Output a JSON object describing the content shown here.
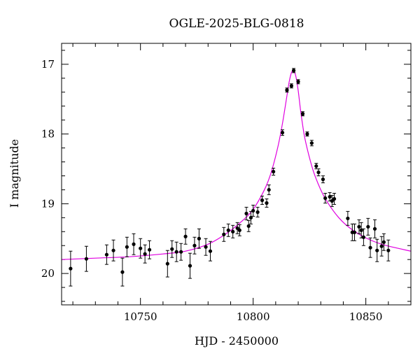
{
  "chart_data": {
    "type": "scatter",
    "title": "OGLE-2025-BLG-0818",
    "xlabel": "HJD - 2450000",
    "ylabel": "I magnitude",
    "xlim": [
      10715,
      10870
    ],
    "ylim": [
      20.45,
      16.7
    ],
    "y_inverted": true,
    "grid": false,
    "x_ticks": [
      10750,
      10800,
      10850
    ],
    "y_ticks": [
      17,
      18,
      19,
      20
    ],
    "colors": {
      "points": "#000000",
      "model": "#e000e0"
    },
    "model": {
      "name": "",
      "x": [
        10715,
        10730,
        10745,
        10760,
        10770,
        10780,
        10788,
        10795,
        10800,
        10805,
        10808,
        10811,
        10813,
        10815,
        10816,
        10817,
        10818,
        10819,
        10820,
        10821,
        10822,
        10823,
        10825,
        10827,
        10830,
        10833,
        10838,
        10843,
        10850,
        10858,
        10870
      ],
      "y": [
        19.8,
        19.78,
        19.76,
        19.72,
        19.68,
        19.58,
        19.43,
        19.25,
        19.08,
        18.8,
        18.55,
        18.18,
        17.85,
        17.45,
        17.25,
        17.12,
        17.09,
        17.18,
        17.38,
        17.65,
        17.88,
        18.07,
        18.34,
        18.56,
        18.8,
        18.98,
        19.2,
        19.35,
        19.49,
        19.59,
        19.68
      ]
    },
    "series": [
      {
        "name": "",
        "x": [
          10719,
          10726,
          10735,
          10738,
          10742,
          10744,
          10747,
          10750,
          10752,
          10754,
          10762,
          10764,
          10766,
          10768,
          10770,
          10772,
          10774,
          10776,
          10779,
          10781,
          10787,
          10789,
          10791,
          10793,
          10794,
          10797,
          10798,
          10799,
          10800,
          10802,
          10804,
          10806,
          10807,
          10809,
          10813,
          10815,
          10817,
          10818,
          10820,
          10822,
          10824,
          10826,
          10828,
          10829,
          10831,
          10832,
          10834,
          10835,
          10836,
          10842,
          10844,
          10845,
          10847,
          10848,
          10849,
          10851,
          10852,
          10854,
          10855,
          10857,
          10858,
          10860
        ],
        "y": [
          19.93,
          19.79,
          19.73,
          19.67,
          19.98,
          19.62,
          19.58,
          19.64,
          19.72,
          19.66,
          19.86,
          19.65,
          19.69,
          19.69,
          19.47,
          19.89,
          19.6,
          19.5,
          19.62,
          19.68,
          19.44,
          19.38,
          19.4,
          19.35,
          19.38,
          19.14,
          19.32,
          19.2,
          19.1,
          19.12,
          18.95,
          18.99,
          18.8,
          18.54,
          17.98,
          17.37,
          17.31,
          17.09,
          17.25,
          17.71,
          18.0,
          18.13,
          18.46,
          18.55,
          18.65,
          18.92,
          18.9,
          18.96,
          18.93,
          19.21,
          19.41,
          19.41,
          19.33,
          19.38,
          19.48,
          19.33,
          19.63,
          19.36,
          19.67,
          19.61,
          19.55,
          19.67
        ],
        "err": [
          0.25,
          0.18,
          0.14,
          0.15,
          0.2,
          0.14,
          0.15,
          0.14,
          0.13,
          0.13,
          0.19,
          0.12,
          0.14,
          0.12,
          0.11,
          0.18,
          0.12,
          0.14,
          0.12,
          0.14,
          0.1,
          0.09,
          0.09,
          0.08,
          0.08,
          0.09,
          0.08,
          0.09,
          0.08,
          0.07,
          0.06,
          0.06,
          0.07,
          0.05,
          0.04,
          0.03,
          0.03,
          0.03,
          0.03,
          0.03,
          0.03,
          0.04,
          0.04,
          0.05,
          0.05,
          0.07,
          0.06,
          0.08,
          0.08,
          0.1,
          0.12,
          0.12,
          0.1,
          0.11,
          0.12,
          0.12,
          0.14,
          0.13,
          0.16,
          0.14,
          0.12,
          0.15
        ]
      }
    ]
  }
}
